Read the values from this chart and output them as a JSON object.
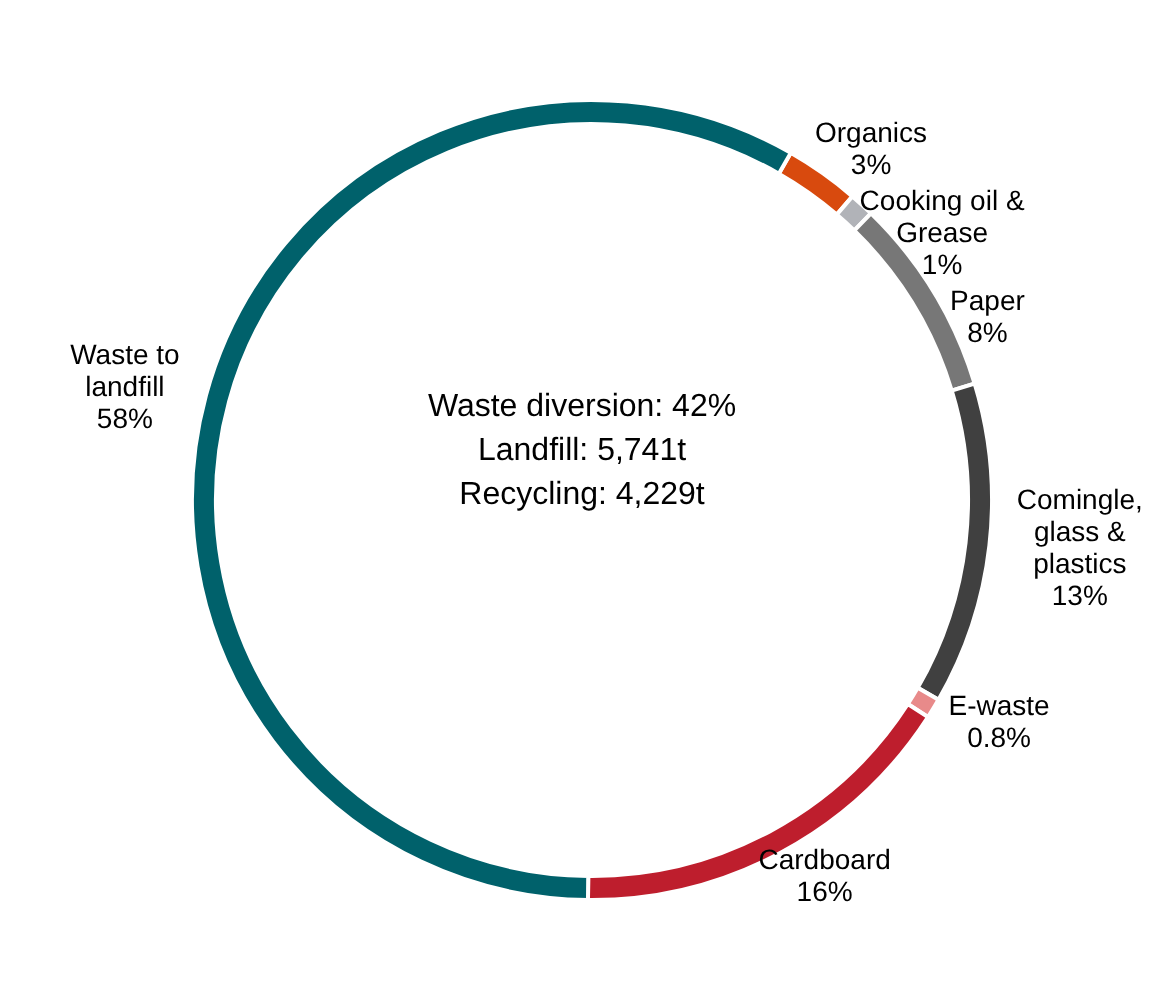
{
  "chart_data": {
    "type": "donut",
    "categories": [
      "Organics",
      "Cooking oil &\nGrease",
      "Paper",
      "Comingle,\nglass &\nplastics",
      "E-waste",
      "Cardboard",
      "Waste to\nlandfill"
    ],
    "values": [
      3,
      1,
      8,
      13,
      0.8,
      16,
      58
    ],
    "colors": [
      "#d84a0e",
      "#b1b3b8",
      "#777777",
      "#404040",
      "#e88a8a",
      "#be1e2d",
      "#00616b"
    ],
    "value_labels": [
      "3%",
      "1%",
      "8%",
      "13%",
      "0.8%",
      "16%",
      "58%"
    ],
    "annotations": [
      "Waste diversion:  42%",
      "Landfill: 5,741t",
      "Recycling: 4,229t"
    ]
  }
}
